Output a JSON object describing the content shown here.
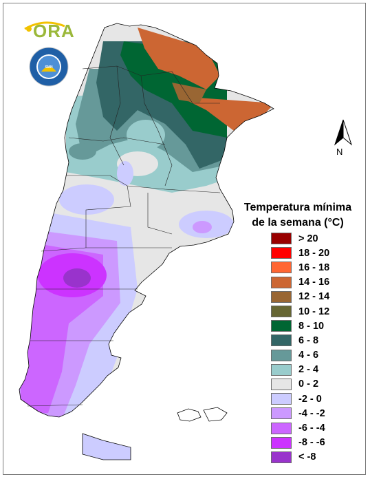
{
  "map": {
    "title_line1": "Temperatura mínima",
    "title_line2": "de la semana (°C)",
    "north_label": "N",
    "logos": {
      "ora": "ORA",
      "smn_top": "SERVICIO METEOROLOGICO NACIONAL",
      "smn_bottom": "ARGENTINA",
      "smn_center": "SMN"
    },
    "legend": [
      {
        "label": "> 20",
        "color": "#990000"
      },
      {
        "label": "18 - 20",
        "color": "#ff0000"
      },
      {
        "label": "16 - 18",
        "color": "#ff6633"
      },
      {
        "label": "14 - 16",
        "color": "#cc6633"
      },
      {
        "label": "12 - 14",
        "color": "#996633"
      },
      {
        "label": "10 - 12",
        "color": "#666633"
      },
      {
        "label": "8 - 10",
        "color": "#006633"
      },
      {
        "label": "6 - 8",
        "color": "#336666"
      },
      {
        "label": "4 - 6",
        "color": "#669999"
      },
      {
        "label": "2 - 4",
        "color": "#99cccc"
      },
      {
        "label": "0 - 2",
        "color": "#e6e6e6"
      },
      {
        "label": "-2 - 0",
        "color": "#ccccff"
      },
      {
        "label": "-4 - -2",
        "color": "#cc99ff"
      },
      {
        "label": "-6 - -4",
        "color": "#cc66ff"
      },
      {
        "label": "-8 - -6",
        "color": "#cc33ff"
      },
      {
        "label": "< -8",
        "color": "#9933cc"
      }
    ]
  }
}
